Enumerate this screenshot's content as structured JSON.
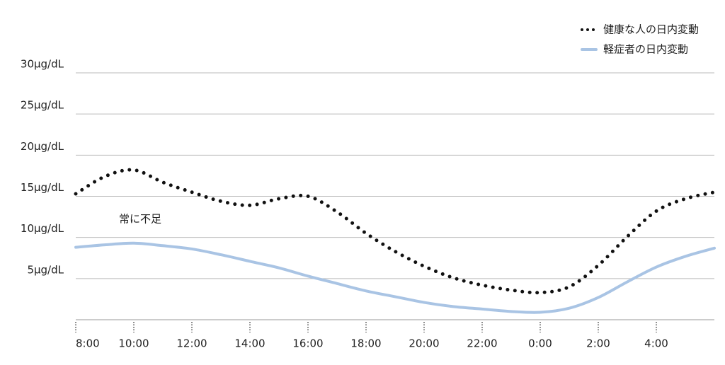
{
  "chart_data": {
    "type": "line",
    "categories": [
      "8:00",
      null,
      "10:00",
      null,
      "12:00",
      null,
      "14:00",
      null,
      "16:00",
      null,
      "18:00",
      null,
      "20:00",
      null,
      "22:00",
      null,
      "0:00",
      null,
      "2:00",
      null,
      "4:00",
      null,
      null
    ],
    "series": [
      {
        "name": "健康な人の日内変動",
        "color": "#111111",
        "style": "dotted",
        "values": [
          15.3,
          17.4,
          18.2,
          16.7,
          15.5,
          14.4,
          13.9,
          14.7,
          15.0,
          13.1,
          10.5,
          8.3,
          6.5,
          5.1,
          4.2,
          3.6,
          3.3,
          4.0,
          6.6,
          10.1,
          13.2,
          14.7,
          15.5
        ]
      },
      {
        "name": "軽症者の日内変動",
        "color": "#a9c4e4",
        "style": "solid",
        "values": [
          8.8,
          9.1,
          9.3,
          9.0,
          8.6,
          7.9,
          7.1,
          6.3,
          5.3,
          4.4,
          3.5,
          2.8,
          2.1,
          1.6,
          1.3,
          1.0,
          0.9,
          1.4,
          2.7,
          4.6,
          6.4,
          7.7,
          8.7
        ]
      }
    ],
    "ylim": [
      0,
      30
    ],
    "yticks": [
      {
        "value": 5,
        "label": "5μg/dL"
      },
      {
        "value": 10,
        "label": "10μg/dL"
      },
      {
        "value": 15,
        "label": "15μg/dL"
      },
      {
        "value": 20,
        "label": "20μg/dL"
      },
      {
        "value": 25,
        "label": "25μg/dL"
      },
      {
        "value": 30,
        "label": "30μg/dL"
      }
    ],
    "grid": true,
    "legend": "top-right",
    "annotations": [
      "常に不足"
    ]
  }
}
